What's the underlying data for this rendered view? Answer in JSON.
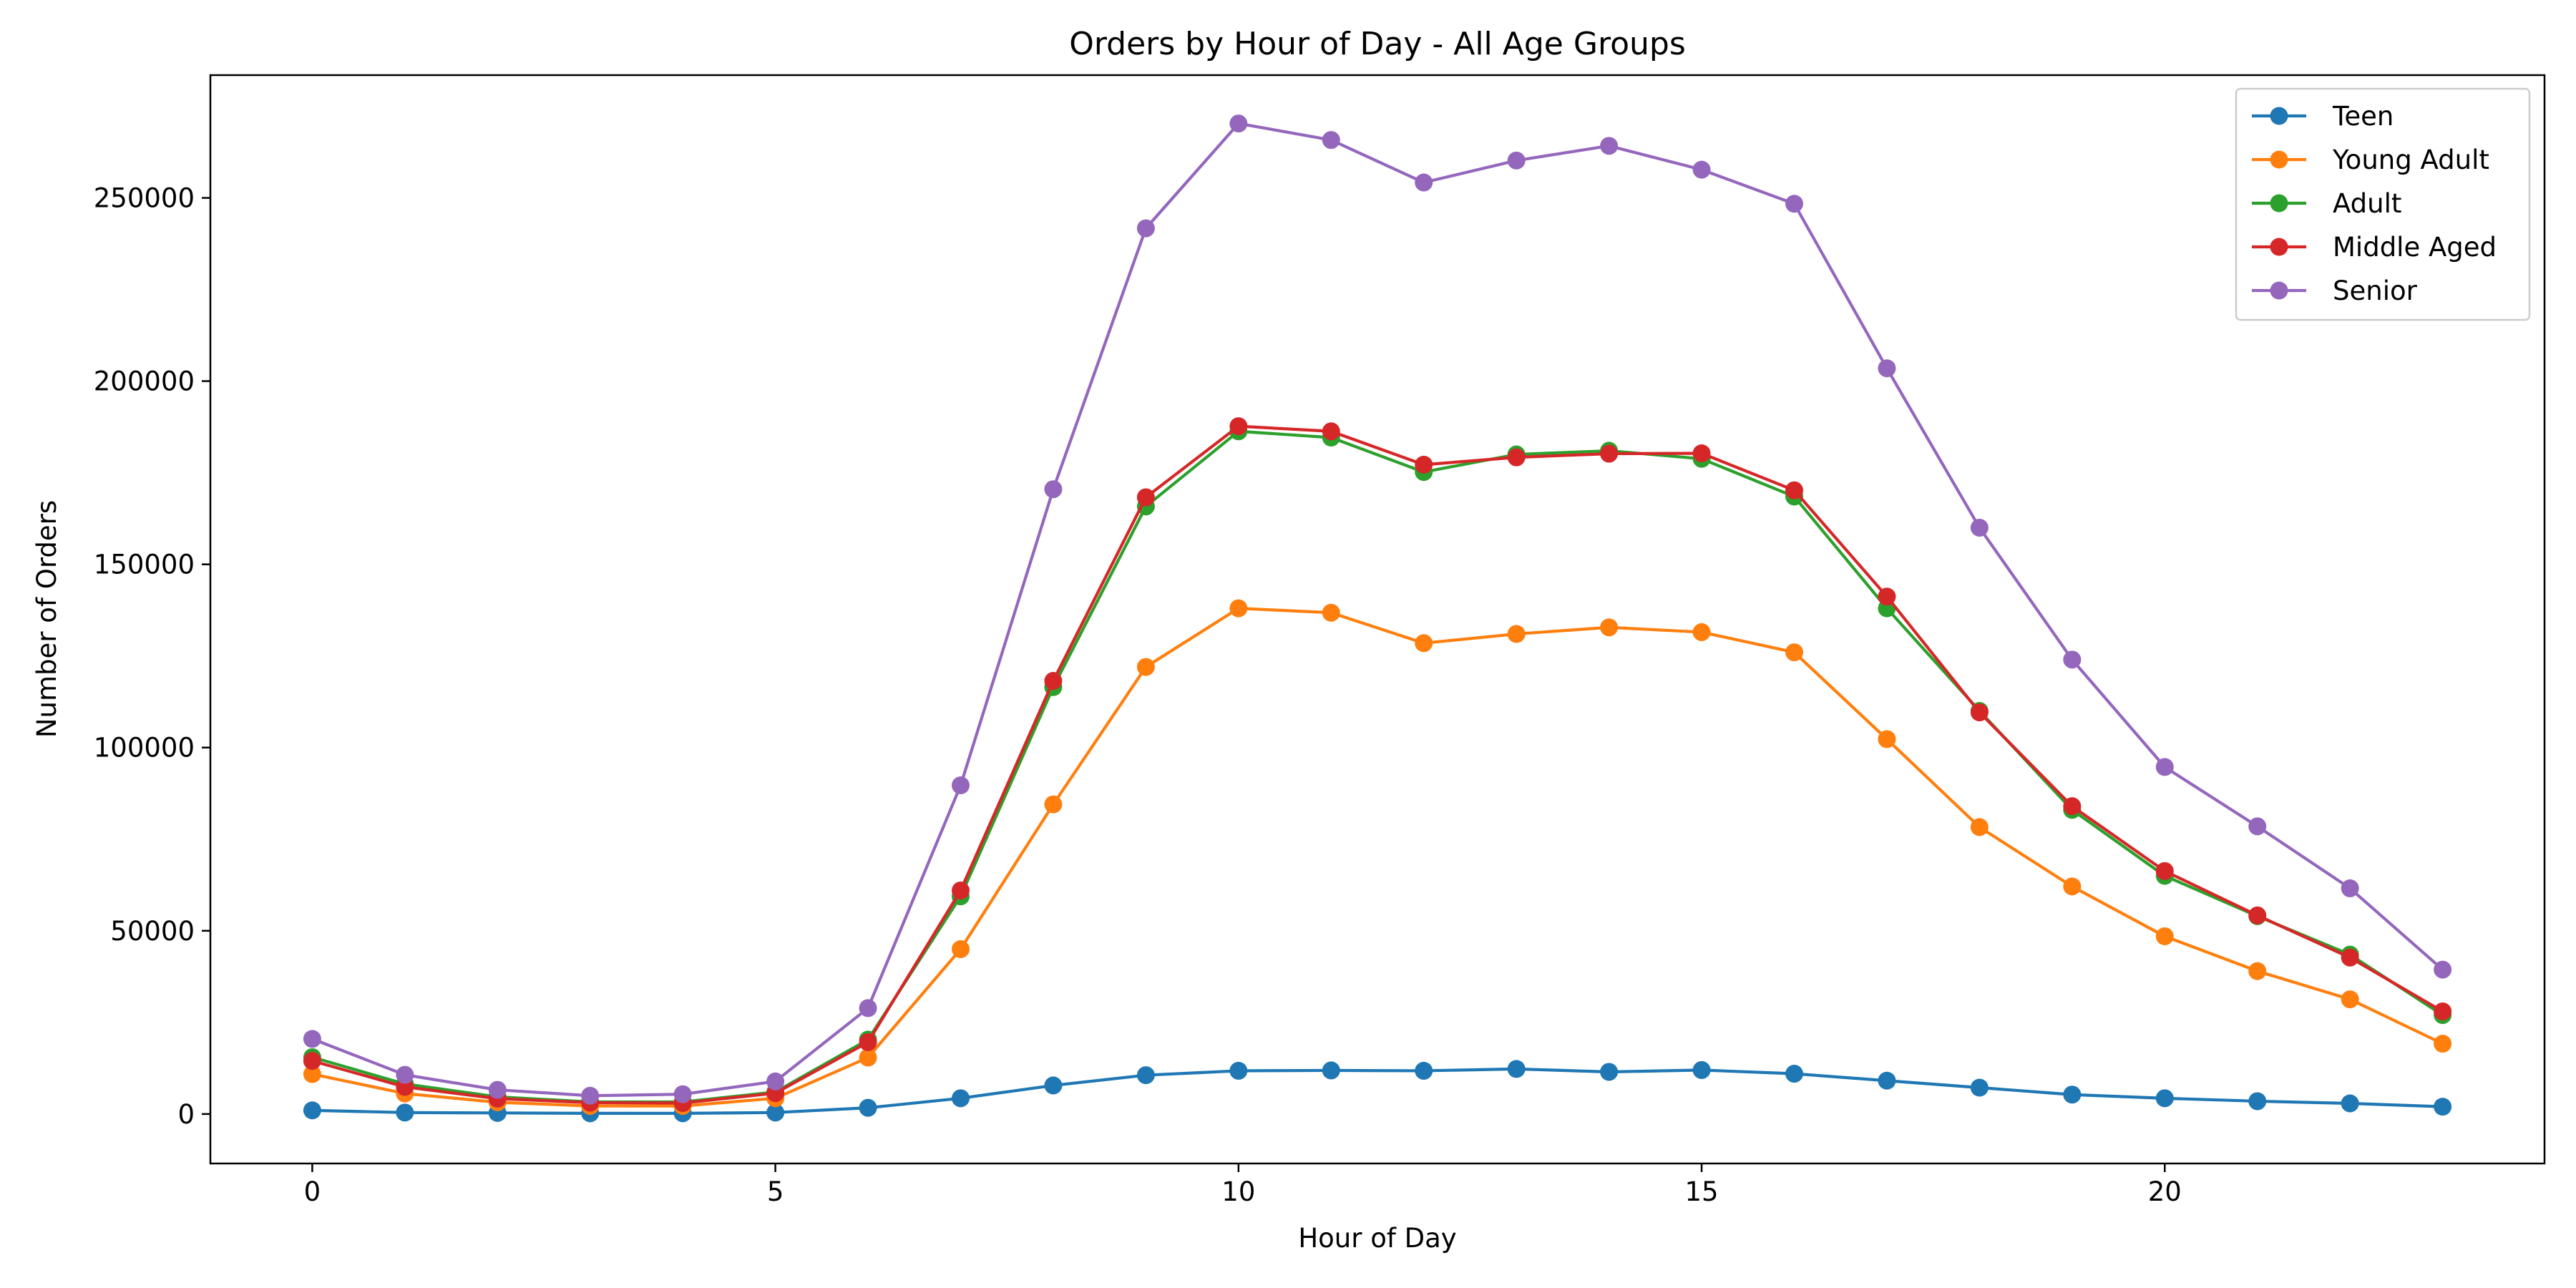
{
  "chart_data": {
    "type": "line",
    "title": "Orders by Hour of Day - All Age Groups",
    "xlabel": "Hour of Day",
    "ylabel": "Number of Orders",
    "xlim": [
      -1.1,
      24.1
    ],
    "ylim": [
      -13500,
      283500
    ],
    "x_ticks": [
      0,
      5,
      10,
      15,
      20
    ],
    "y_ticks": [
      0,
      50000,
      100000,
      150000,
      200000,
      250000
    ],
    "grid": false,
    "legend_position": "top-right",
    "marker": "circle",
    "x": [
      0,
      1,
      2,
      3,
      4,
      5,
      6,
      7,
      8,
      9,
      10,
      11,
      12,
      13,
      14,
      15,
      16,
      17,
      18,
      19,
      20,
      21,
      22,
      23
    ],
    "series": [
      {
        "name": "Teen",
        "color": "#1f77b4",
        "values": [
          1000,
          400,
          300,
          200,
          200,
          400,
          1700,
          4300,
          7800,
          10600,
          11800,
          11900,
          11800,
          12300,
          11500,
          12000,
          11000,
          9100,
          7200,
          5300,
          4300,
          3500,
          2900,
          2000
        ]
      },
      {
        "name": "Young Adult",
        "color": "#ff7f0e",
        "values": [
          10900,
          5600,
          3200,
          2200,
          2200,
          4300,
          15400,
          45000,
          84500,
          122000,
          138000,
          136800,
          128500,
          131000,
          132800,
          131500,
          126000,
          102300,
          78300,
          62100,
          48500,
          39000,
          31300,
          19200
        ]
      },
      {
        "name": "Adult",
        "color": "#2ca02c",
        "values": [
          15500,
          8200,
          4700,
          3300,
          3300,
          6000,
          20300,
          59400,
          116500,
          165800,
          186300,
          184600,
          175200,
          180000,
          181000,
          178800,
          168500,
          138000,
          110000,
          83000,
          65000,
          54000,
          43500,
          27000
        ]
      },
      {
        "name": "Middle Aged",
        "color": "#d62728",
        "values": [
          14500,
          7400,
          4200,
          3100,
          3000,
          5700,
          19600,
          61000,
          118200,
          168300,
          187700,
          186300,
          177200,
          179200,
          180200,
          180300,
          170200,
          141200,
          109600,
          84000,
          66300,
          54200,
          42700,
          28000
        ]
      },
      {
        "name": "Senior",
        "color": "#9467bd",
        "values": [
          20500,
          10700,
          6600,
          5000,
          5400,
          8900,
          28900,
          89700,
          170500,
          241700,
          270300,
          265800,
          254200,
          260200,
          264200,
          257700,
          248400,
          203500,
          160000,
          124000,
          94700,
          78500,
          61600,
          39400
        ]
      }
    ]
  }
}
